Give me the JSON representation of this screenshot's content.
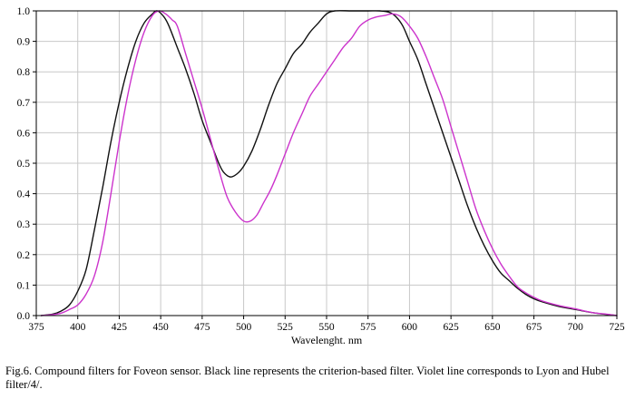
{
  "caption": "Fig.6. Compound filters for Foveon sensor. Black line represents the criterion-based filter. Violet line corresponds to Lyon and Hubel filter/4/.",
  "chart_data": {
    "type": "line",
    "title": "",
    "xlabel": "Wavelenght. nm",
    "ylabel": "",
    "xlim": [
      375,
      725
    ],
    "ylim": [
      0,
      1.0
    ],
    "x_ticks": [
      375,
      400,
      425,
      450,
      475,
      500,
      525,
      550,
      575,
      600,
      625,
      650,
      675,
      700,
      725
    ],
    "x_tick_labels": [
      "375",
      "400",
      "425",
      "450",
      "475",
      "500",
      "525",
      "550",
      "575",
      "600",
      "625",
      "650",
      "675",
      "700",
      "725"
    ],
    "y_ticks": [
      0,
      0.1,
      0.2,
      0.3,
      0.4,
      0.5,
      0.6,
      0.7,
      0.8,
      0.9,
      1.0
    ],
    "y_tick_labels": [
      "0.0",
      "0.1",
      "0.2",
      "0.3",
      "0.4",
      "0.5",
      "0.6",
      "0.7",
      "0.8",
      "0.9",
      "1.0"
    ],
    "grid": true,
    "legend": "none",
    "colors": {
      "black": "#111111",
      "violet": "#cc33cc",
      "grid": "#c8c8c8"
    },
    "series": [
      {
        "color": "#111111",
        "points": [
          [
            378,
            0.0
          ],
          [
            385,
            0.005
          ],
          [
            390,
            0.015
          ],
          [
            395,
            0.035
          ],
          [
            400,
            0.08
          ],
          [
            405,
            0.15
          ],
          [
            410,
            0.28
          ],
          [
            415,
            0.42
          ],
          [
            420,
            0.57
          ],
          [
            425,
            0.7
          ],
          [
            430,
            0.81
          ],
          [
            435,
            0.9
          ],
          [
            440,
            0.96
          ],
          [
            445,
            0.99
          ],
          [
            448,
            1.0
          ],
          [
            452,
            0.98
          ],
          [
            455,
            0.95
          ],
          [
            460,
            0.88
          ],
          [
            465,
            0.81
          ],
          [
            470,
            0.73
          ],
          [
            475,
            0.64
          ],
          [
            480,
            0.57
          ],
          [
            485,
            0.5
          ],
          [
            488,
            0.47
          ],
          [
            492,
            0.455
          ],
          [
            496,
            0.465
          ],
          [
            500,
            0.49
          ],
          [
            505,
            0.54
          ],
          [
            510,
            0.61
          ],
          [
            515,
            0.69
          ],
          [
            520,
            0.76
          ],
          [
            525,
            0.81
          ],
          [
            530,
            0.86
          ],
          [
            535,
            0.89
          ],
          [
            540,
            0.93
          ],
          [
            545,
            0.96
          ],
          [
            550,
            0.99
          ],
          [
            555,
            1.0
          ],
          [
            565,
            1.0
          ],
          [
            575,
            1.0
          ],
          [
            582,
            1.0
          ],
          [
            588,
            0.995
          ],
          [
            592,
            0.98
          ],
          [
            596,
            0.95
          ],
          [
            600,
            0.9
          ],
          [
            605,
            0.84
          ],
          [
            610,
            0.76
          ],
          [
            615,
            0.68
          ],
          [
            620,
            0.6
          ],
          [
            625,
            0.52
          ],
          [
            630,
            0.44
          ],
          [
            635,
            0.36
          ],
          [
            640,
            0.29
          ],
          [
            645,
            0.23
          ],
          [
            650,
            0.18
          ],
          [
            655,
            0.14
          ],
          [
            660,
            0.115
          ],
          [
            665,
            0.09
          ],
          [
            670,
            0.07
          ],
          [
            675,
            0.055
          ],
          [
            680,
            0.045
          ],
          [
            690,
            0.03
          ],
          [
            700,
            0.02
          ],
          [
            710,
            0.01
          ],
          [
            720,
            0.003
          ],
          [
            725,
            0.0
          ]
        ]
      },
      {
        "color": "#cc33cc",
        "points": [
          [
            378,
            0.0
          ],
          [
            385,
            0.003
          ],
          [
            390,
            0.008
          ],
          [
            395,
            0.02
          ],
          [
            400,
            0.035
          ],
          [
            405,
            0.07
          ],
          [
            410,
            0.13
          ],
          [
            415,
            0.24
          ],
          [
            420,
            0.4
          ],
          [
            425,
            0.57
          ],
          [
            430,
            0.72
          ],
          [
            435,
            0.84
          ],
          [
            440,
            0.93
          ],
          [
            445,
            0.985
          ],
          [
            449,
            1.0
          ],
          [
            453,
            0.99
          ],
          [
            457,
            0.97
          ],
          [
            460,
            0.95
          ],
          [
            465,
            0.86
          ],
          [
            470,
            0.77
          ],
          [
            475,
            0.68
          ],
          [
            480,
            0.58
          ],
          [
            485,
            0.48
          ],
          [
            490,
            0.39
          ],
          [
            495,
            0.34
          ],
          [
            500,
            0.31
          ],
          [
            504,
            0.31
          ],
          [
            508,
            0.33
          ],
          [
            512,
            0.37
          ],
          [
            516,
            0.41
          ],
          [
            520,
            0.46
          ],
          [
            525,
            0.53
          ],
          [
            530,
            0.6
          ],
          [
            535,
            0.66
          ],
          [
            540,
            0.72
          ],
          [
            545,
            0.76
          ],
          [
            550,
            0.8
          ],
          [
            555,
            0.84
          ],
          [
            560,
            0.88
          ],
          [
            565,
            0.91
          ],
          [
            570,
            0.95
          ],
          [
            575,
            0.97
          ],
          [
            580,
            0.98
          ],
          [
            585,
            0.985
          ],
          [
            590,
            0.99
          ],
          [
            595,
            0.98
          ],
          [
            600,
            0.95
          ],
          [
            605,
            0.91
          ],
          [
            610,
            0.85
          ],
          [
            615,
            0.78
          ],
          [
            620,
            0.71
          ],
          [
            625,
            0.62
          ],
          [
            630,
            0.53
          ],
          [
            635,
            0.44
          ],
          [
            640,
            0.35
          ],
          [
            645,
            0.28
          ],
          [
            650,
            0.22
          ],
          [
            655,
            0.17
          ],
          [
            660,
            0.13
          ],
          [
            665,
            0.095
          ],
          [
            670,
            0.075
          ],
          [
            675,
            0.06
          ],
          [
            680,
            0.048
          ],
          [
            690,
            0.033
          ],
          [
            700,
            0.022
          ],
          [
            710,
            0.01
          ],
          [
            720,
            0.004
          ],
          [
            725,
            0.0
          ]
        ]
      }
    ]
  }
}
